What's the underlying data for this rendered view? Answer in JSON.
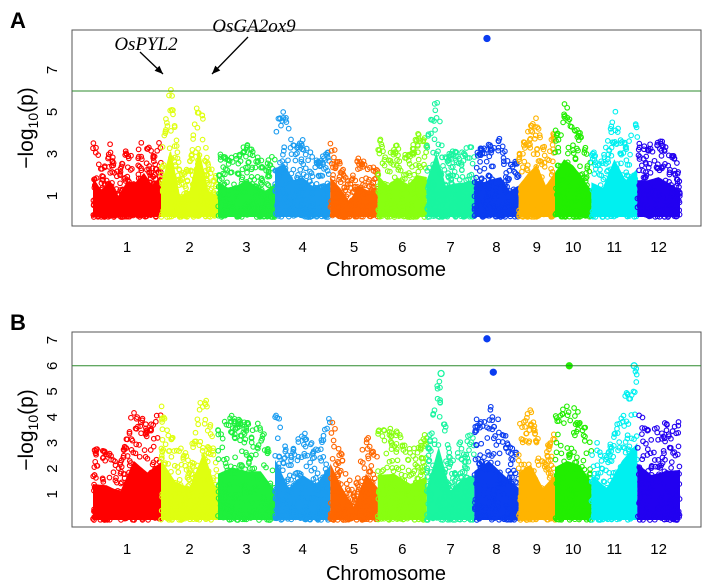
{
  "chart_data": {
    "type": "scatter",
    "subtype": "manhattan",
    "xlabel": "Chromosome",
    "ylabel_main": "−log",
    "ylabel_sub": "10",
    "ylabel_tail": "(p)",
    "chromosomes": [
      {
        "name": "1",
        "length": 43,
        "color": "#ff0000"
      },
      {
        "name": "2",
        "length": 36,
        "color": "#dfff10"
      },
      {
        "name": "3",
        "length": 36,
        "color": "#1ef03c"
      },
      {
        "name": "4",
        "length": 35,
        "color": "#1a9cf0"
      },
      {
        "name": "5",
        "length": 30,
        "color": "#ff6600"
      },
      {
        "name": "6",
        "length": 31,
        "color": "#88ff10"
      },
      {
        "name": "7",
        "length": 30,
        "color": "#19f5a0"
      },
      {
        "name": "8",
        "length": 28,
        "color": "#0a3cf0"
      },
      {
        "name": "9",
        "length": 23,
        "color": "#ffb400"
      },
      {
        "name": "10",
        "length": 23,
        "color": "#22ee00"
      },
      {
        "name": "11",
        "length": 29,
        "color": "#00f0f0"
      },
      {
        "name": "12",
        "length": 27,
        "color": "#2200f0"
      }
    ],
    "threshold_color": "#2e8b2e",
    "panels": [
      {
        "label": "A",
        "ylim": [
          0,
          8.9
        ],
        "yticks": [
          1,
          3,
          5,
          7
        ],
        "threshold": 6,
        "envelopes": [
          [
            3.8,
            2.5,
            3.5,
            2.0,
            3.4,
            3.3,
            4.2,
            3.0,
            4.0
          ],
          [
            3.0,
            6.5,
            2.0,
            2.5,
            6.5,
            2.5,
            2.0
          ],
          [
            3.4,
            2.8,
            3.0,
            3.5,
            3.0,
            2.5,
            3.2
          ],
          [
            4.6,
            5.1,
            3.5,
            3.8,
            3.0,
            2.8,
            3.4
          ],
          [
            3.8,
            2.8,
            1.5,
            3.0,
            2.5,
            2.5
          ],
          [
            4.0,
            3.0,
            3.8,
            3.0,
            4.0,
            3.8
          ],
          [
            3.5,
            6.1,
            3.0,
            3.2,
            3.3,
            3.5
          ],
          [
            3.5,
            3.3,
            3.6,
            3.8,
            2.5,
            3.0
          ],
          [
            3.0,
            4.1,
            5.0,
            3.0,
            4.3
          ],
          [
            4.2,
            5.5,
            4.9,
            3.8,
            2.5
          ],
          [
            3.3,
            2.8,
            5.5,
            3.5,
            4.6
          ],
          [
            3.5,
            3.5,
            3.8,
            3.2,
            2.5
          ]
        ],
        "highlights": [
          {
            "chr": 8,
            "pos": 8,
            "value": 8.5,
            "filled": true
          }
        ],
        "annotations": [
          {
            "text": "OsPYL2",
            "chr": 2,
            "pos": 9,
            "value": 6.5
          },
          {
            "text": "OsGA2ox9",
            "chr": 2,
            "pos": 24,
            "value": 6.5
          }
        ]
      },
      {
        "label": "B",
        "ylim": [
          0,
          7.4
        ],
        "yticks": [
          1,
          2,
          3,
          4,
          5,
          6,
          7
        ],
        "threshold": 6,
        "envelopes": [
          [
            2.8,
            2.7,
            2.2,
            4.6,
            3.7,
            4.5
          ],
          [
            4.7,
            3.0,
            2.5,
            5.3,
            2.0
          ],
          [
            3.6,
            4.1,
            3.8,
            3.8,
            2.3
          ],
          [
            4.7,
            2.5,
            3.5,
            2.8,
            4.3
          ],
          [
            4.4,
            2.5,
            1.0,
            3.6,
            2.5
          ],
          [
            3.5,
            3.6,
            2.8,
            3.4
          ],
          [
            2.5,
            5.7,
            2.3,
            3.2,
            3.5
          ],
          [
            3.8,
            4.6,
            3.5,
            2.5
          ],
          [
            3.7,
            4.3,
            2.5,
            3.5
          ],
          [
            4.1,
            4.6,
            4.3,
            3.0
          ],
          [
            3.5,
            2.5,
            4.6,
            6.0
          ],
          [
            4.4,
            3.5,
            3.8,
            3.9
          ]
        ],
        "highlights": [
          {
            "chr": 8,
            "pos": 8,
            "value": 7.05,
            "filled": true
          },
          {
            "chr": 8,
            "pos": 12,
            "value": 5.75,
            "filled": true
          },
          {
            "chr": 10,
            "pos": 9,
            "value": 6.0,
            "filled": true
          },
          {
            "chr": 11,
            "pos": 27,
            "value": 6.0,
            "filled": false
          },
          {
            "chr": 7,
            "pos": 9,
            "value": 5.7,
            "filled": false
          }
        ],
        "annotations": []
      }
    ]
  }
}
